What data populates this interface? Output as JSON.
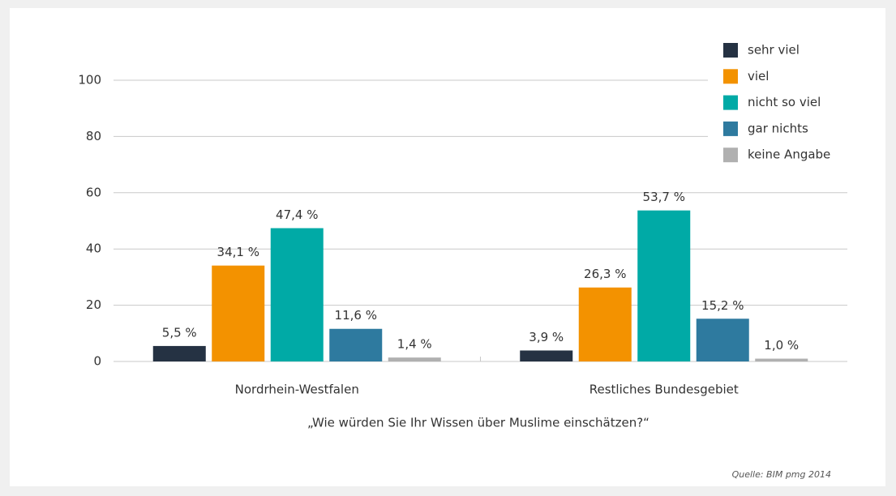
{
  "chart_data": {
    "type": "bar",
    "categories": [
      "Nordrhein-Westfalen",
      "Restliches Bundesgebiet"
    ],
    "series": [
      {
        "name": "sehr viel",
        "color": "#253243",
        "values": [
          5.5,
          3.9
        ],
        "value_labels": [
          "5,5 %",
          "3,9 %"
        ]
      },
      {
        "name": "viel",
        "color": "#f39200",
        "values": [
          34.1,
          26.3
        ],
        "value_labels": [
          "34,1 %",
          "26,3 %"
        ]
      },
      {
        "name": "nicht so viel",
        "color": "#00aaa6",
        "values": [
          47.4,
          53.7
        ],
        "value_labels": [
          "47,4 %",
          "53,7 %"
        ]
      },
      {
        "name": "gar nichts",
        "color": "#2e7a9f",
        "values": [
          11.6,
          15.2
        ],
        "value_labels": [
          "11,6 %",
          "15,2 %"
        ]
      },
      {
        "name": "keine Angabe",
        "color": "#b0b0b0",
        "values": [
          1.4,
          1.0
        ],
        "value_labels": [
          "1,4 %",
          "1,0 %"
        ]
      }
    ],
    "x_label": "„Wie würden Sie Ihr Wissen über Muslime einschätzen?“",
    "source": "Quelle: BIM pmg 2014",
    "ylim": [
      0,
      100
    ],
    "yticks": [
      0,
      20,
      40,
      60,
      80,
      100
    ],
    "grid": true,
    "legend": "upper right"
  }
}
